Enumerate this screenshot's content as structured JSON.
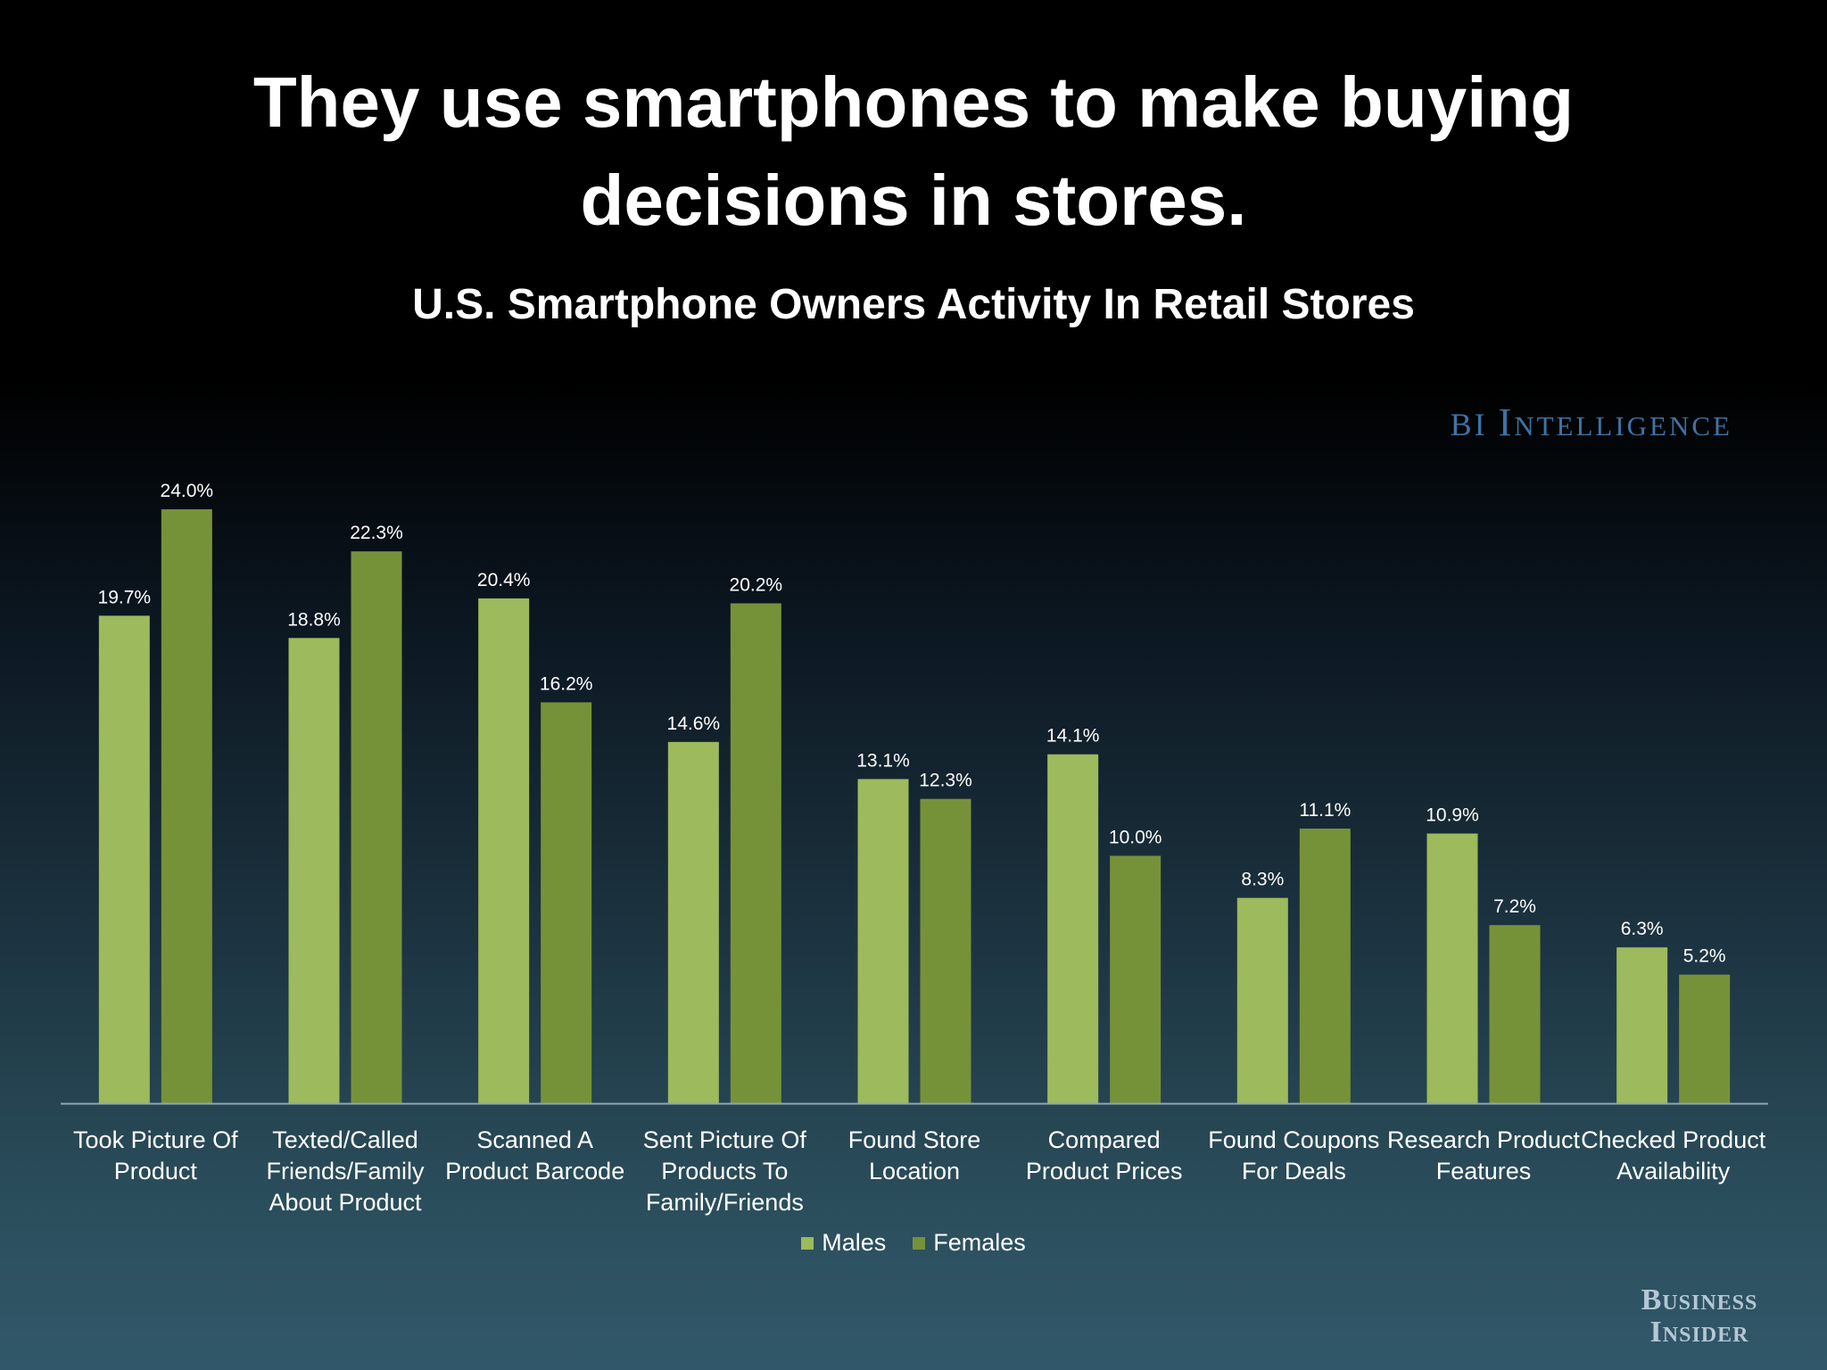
{
  "title_lines": [
    "They use smartphones to make buying",
    "decisions in stores."
  ],
  "subtitle": "U.S. Smartphone Owners Activity In Retail Stores",
  "brand": {
    "bi": "BI",
    "intelligence": "Intelligence"
  },
  "footer_logo": {
    "line1": "Business",
    "line2": "Insider"
  },
  "colors": {
    "males": "#9dba5c",
    "females": "#769239",
    "axis": "#8fa7b3",
    "brand": "#3e73a5"
  },
  "chart_data": {
    "type": "bar",
    "title": "U.S. Smartphone Owners Activity In Retail Stores",
    "categories": [
      [
        "Took Picture Of",
        "Product"
      ],
      [
        "Texted/Called",
        "Friends/Family",
        "About Product"
      ],
      [
        "Scanned A",
        "Product Barcode"
      ],
      [
        "Sent Picture Of",
        "Products To",
        "Family/Friends"
      ],
      [
        "Found Store",
        "Location"
      ],
      [
        "Compared",
        "Product Prices"
      ],
      [
        "Found Coupons",
        "For Deals"
      ],
      [
        "Research Product",
        "Features"
      ],
      [
        "Checked Product",
        "Availability"
      ]
    ],
    "series": [
      {
        "name": "Males",
        "values": [
          19.7,
          18.8,
          20.4,
          14.6,
          13.1,
          14.1,
          8.3,
          10.9,
          6.3
        ],
        "labels": [
          "19.7%",
          "18.8%",
          "20.4%",
          "14.6%",
          "13.1%",
          "14.1%",
          "8.3%",
          "10.9%",
          "6.3%"
        ]
      },
      {
        "name": "Females",
        "values": [
          24.0,
          22.3,
          16.2,
          20.2,
          12.3,
          10.0,
          11.1,
          7.2,
          5.2
        ],
        "labels": [
          "24.0%",
          "22.3%",
          "16.2%",
          "20.2%",
          "12.3%",
          "10.0%",
          "11.1%",
          "7.2%",
          "5.2%"
        ]
      }
    ],
    "ylim": [
      0,
      24
    ],
    "grid": false,
    "legend": "bottom-center"
  }
}
